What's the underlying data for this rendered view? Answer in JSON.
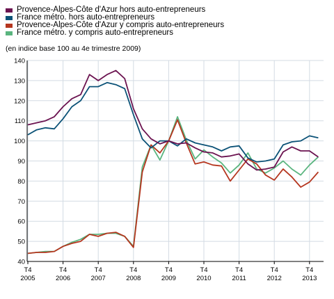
{
  "chart_data": {
    "type": "line",
    "title": "",
    "subtitle": "(en indice base 100 au 4e trimestre 2009)",
    "xlabel": "",
    "ylabel": "",
    "ylim": [
      40,
      140
    ],
    "yticks": [
      40,
      50,
      60,
      70,
      80,
      90,
      100,
      110,
      120,
      130,
      140
    ],
    "grid": true,
    "legend_position": "top-left",
    "x_tick_labels": [
      {
        "q": "T4",
        "year": "2005",
        "index": 0
      },
      {
        "q": "T4",
        "year": "2006",
        "index": 4
      },
      {
        "q": "T4",
        "year": "2007",
        "index": 8
      },
      {
        "q": "T4",
        "year": "2008",
        "index": 12
      },
      {
        "q": "T4",
        "year": "2009",
        "index": 16
      },
      {
        "q": "T4",
        "year": "2010",
        "index": 20
      },
      {
        "q": "T4",
        "year": "2011",
        "index": 24
      },
      {
        "q": "T4",
        "year": "2012",
        "index": 28
      },
      {
        "q": "T4",
        "year": "2013",
        "index": 32
      }
    ],
    "num_points": 34,
    "series": [
      {
        "name": "Provence-Alpes-Côte d'Azur hors auto-entrepreneurs",
        "color": "#6b1350",
        "values": [
          108,
          109,
          110,
          112,
          117,
          121,
          123,
          133,
          130,
          133,
          135,
          131,
          116,
          106,
          101,
          98.5,
          100,
          98.5,
          99,
          96.5,
          94.5,
          94,
          92,
          92.5,
          93.5,
          88.5,
          85.5,
          86,
          87,
          94.5,
          97,
          95,
          95,
          92
        ]
      },
      {
        "name": "France métro. hors auto-entrepreneurs",
        "color": "#0b5277",
        "values": [
          103,
          105.5,
          106.5,
          106,
          111,
          117,
          120,
          127,
          127,
          129,
          128,
          126,
          113,
          101,
          96.5,
          100,
          100,
          97.5,
          101,
          99,
          98,
          97,
          95,
          97,
          97.5,
          91.5,
          89.5,
          90,
          91,
          98,
          99.5,
          100,
          102.5,
          101.5
        ]
      },
      {
        "name": "Provence-Alpes-Côte d'Azur y compris auto-entrepreneurs",
        "color": "#b5361f",
        "values": [
          44,
          44.5,
          44.5,
          45,
          47.5,
          49,
          50,
          53.5,
          52.5,
          54,
          54.5,
          52.5,
          47,
          84.5,
          98,
          94,
          100,
          110.5,
          99,
          88.5,
          89.5,
          88,
          87.5,
          80,
          85.5,
          91,
          88.5,
          83,
          80.5,
          86,
          82,
          77,
          79.5,
          84.5
        ]
      },
      {
        "name": "France métro. y compris auto-entrepreneurs",
        "color": "#5ab57f",
        "values": [
          44,
          44.5,
          45,
          45,
          47.5,
          49.5,
          51,
          53.5,
          53.5,
          54,
          54,
          52.5,
          47.5,
          87,
          98,
          90.5,
          100,
          112,
          100.5,
          91,
          95.5,
          92,
          89,
          84,
          88,
          94,
          86,
          84,
          86.5,
          90,
          86,
          83,
          88,
          92
        ]
      }
    ]
  }
}
